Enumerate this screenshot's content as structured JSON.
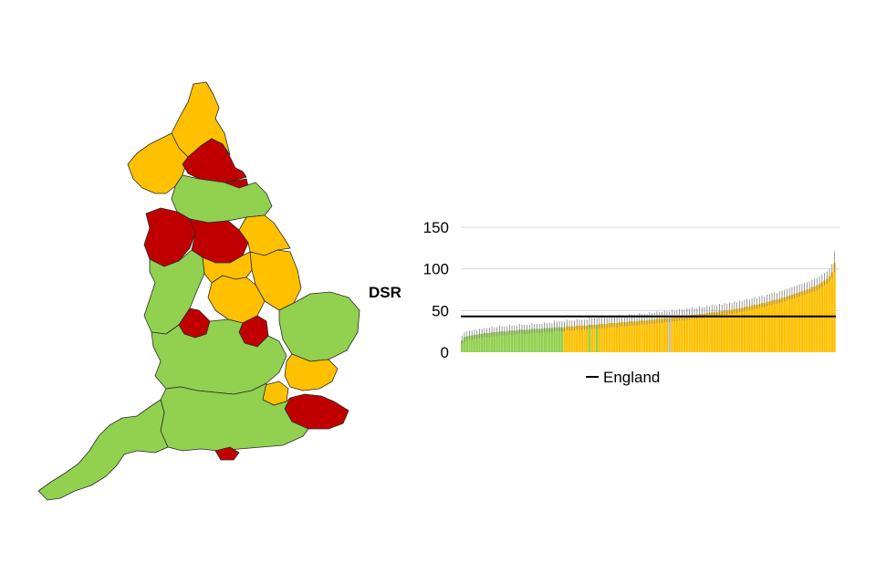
{
  "colors": {
    "better": "#92d050",
    "similar": "#ffc000",
    "worse": "#c00000",
    "not_compared": "#bfbfbf",
    "england_line": "#000000",
    "error_bar": "#808080",
    "gridline": "#d9d9d9"
  },
  "map": {
    "regions": [
      {
        "name": "northumberland",
        "color": "similar"
      },
      {
        "name": "cumbria",
        "color": "similar"
      },
      {
        "name": "tyne-and-wear",
        "color": "worse"
      },
      {
        "name": "county-durham",
        "color": "worse"
      },
      {
        "name": "north-yorkshire",
        "color": "better"
      },
      {
        "name": "lancashire",
        "color": "worse"
      },
      {
        "name": "west-yorkshire",
        "color": "worse"
      },
      {
        "name": "east-riding",
        "color": "similar"
      },
      {
        "name": "lincolnshire",
        "color": "similar"
      },
      {
        "name": "south-yorkshire",
        "color": "similar"
      },
      {
        "name": "cheshire-shropshire",
        "color": "better"
      },
      {
        "name": "derbyshire-notts",
        "color": "similar"
      },
      {
        "name": "west-midlands",
        "color": "worse"
      },
      {
        "name": "leicestershire",
        "color": "worse"
      },
      {
        "name": "east-anglia",
        "color": "better"
      },
      {
        "name": "midlands-south",
        "color": "better"
      },
      {
        "name": "essex",
        "color": "similar"
      },
      {
        "name": "kent",
        "color": "worse"
      },
      {
        "name": "london",
        "color": "similar"
      },
      {
        "name": "south-central",
        "color": "better"
      },
      {
        "name": "south-west",
        "color": "better"
      },
      {
        "name": "isle-of-wight",
        "color": "worse"
      }
    ]
  },
  "chart_data": {
    "type": "bar",
    "title": "",
    "xlabel": "",
    "ylabel": "DSR",
    "ylim": [
      0,
      150
    ],
    "yticks": [
      0,
      50,
      100,
      150
    ],
    "grid": true,
    "legend": {
      "entries": [
        "England"
      ],
      "placement": "bottom"
    },
    "reference_line": {
      "name": "England",
      "value": 43
    },
    "categories_count": 150,
    "values": [
      14,
      18,
      19,
      20,
      20,
      21,
      21,
      22,
      22,
      23,
      23,
      23,
      24,
      24,
      24,
      25,
      25,
      25,
      25,
      26,
      26,
      26,
      26,
      27,
      27,
      27,
      27,
      27,
      28,
      28,
      28,
      28,
      28,
      29,
      29,
      29,
      29,
      30,
      30,
      30,
      30,
      30,
      31,
      31,
      31,
      31,
      32,
      32,
      32,
      32,
      32,
      33,
      33,
      33,
      33,
      34,
      34,
      34,
      34,
      35,
      35,
      35,
      35,
      36,
      36,
      36,
      36,
      37,
      37,
      37,
      37,
      38,
      38,
      38,
      38,
      39,
      39,
      39,
      40,
      40,
      40,
      41,
      41,
      41,
      42,
      42,
      42,
      43,
      43,
      43,
      44,
      44,
      45,
      45,
      45,
      46,
      46,
      46,
      47,
      47,
      48,
      48,
      48,
      49,
      49,
      50,
      50,
      51,
      51,
      52,
      52,
      53,
      53,
      54,
      55,
      55,
      56,
      57,
      57,
      58,
      59,
      59,
      60,
      61,
      62,
      63,
      63,
      64,
      65,
      66,
      67,
      68,
      69,
      70,
      71,
      72,
      73,
      74,
      75,
      76,
      78,
      79,
      80,
      82,
      84,
      86,
      88,
      91,
      96,
      107
    ],
    "error_upper": [
      20,
      24,
      25,
      26,
      26,
      27,
      27,
      28,
      28,
      29,
      29,
      29,
      31,
      30,
      30,
      32,
      31,
      31,
      31,
      33,
      32,
      32,
      32,
      34,
      33,
      33,
      33,
      33,
      35,
      34,
      34,
      34,
      34,
      36,
      35,
      35,
      35,
      38,
      37,
      37,
      37,
      37,
      39,
      38,
      38,
      38,
      40,
      39,
      39,
      39,
      39,
      42,
      41,
      41,
      41,
      43,
      42,
      42,
      42,
      44,
      43,
      43,
      43,
      45,
      44,
      44,
      44,
      46,
      45,
      45,
      45,
      47,
      46,
      46,
      46,
      48,
      47,
      47,
      49,
      48,
      48,
      50,
      49,
      49,
      51,
      50,
      50,
      52,
      51,
      51,
      53,
      52,
      54,
      53,
      53,
      55,
      54,
      54,
      56,
      55,
      57,
      56,
      56,
      58,
      57,
      59,
      58,
      60,
      59,
      61,
      60,
      62,
      61,
      63,
      64,
      63,
      65,
      66,
      65,
      67,
      68,
      67,
      69,
      70,
      71,
      72,
      71,
      73,
      74,
      75,
      76,
      77,
      78,
      79,
      80,
      81,
      82,
      83,
      84,
      85,
      87,
      88,
      89,
      91,
      93,
      95,
      97,
      100,
      106,
      121
    ],
    "error_lower": [
      10,
      13,
      14,
      15,
      15,
      16,
      16,
      17,
      17,
      18,
      18,
      18,
      19,
      19,
      19,
      20,
      20,
      20,
      20,
      21,
      21,
      21,
      21,
      22,
      22,
      22,
      22,
      22,
      23,
      23,
      23,
      23,
      23,
      24,
      24,
      24,
      24,
      25,
      25,
      25,
      25,
      25,
      26,
      26,
      26,
      26,
      27,
      27,
      27,
      27,
      27,
      28,
      28,
      28,
      28,
      29,
      29,
      29,
      29,
      30,
      30,
      30,
      30,
      31,
      31,
      31,
      31,
      32,
      32,
      32,
      32,
      33,
      33,
      33,
      33,
      34,
      34,
      34,
      35,
      35,
      35,
      36,
      36,
      36,
      37,
      37,
      37,
      38,
      38,
      38,
      39,
      39,
      40,
      40,
      40,
      41,
      41,
      41,
      42,
      42,
      43,
      43,
      43,
      44,
      44,
      45,
      45,
      46,
      46,
      47,
      47,
      48,
      48,
      49,
      50,
      50,
      51,
      52,
      52,
      53,
      54,
      54,
      55,
      56,
      57,
      58,
      58,
      59,
      60,
      61,
      62,
      63,
      64,
      65,
      66,
      67,
      68,
      69,
      70,
      71,
      72,
      73,
      74,
      76,
      78,
      80,
      82,
      85,
      89,
      96
    ],
    "value_colors": [
      "better",
      "better",
      "better",
      "better",
      "better",
      "better",
      "better",
      "better",
      "better",
      "better",
      "better",
      "better",
      "better",
      "better",
      "better",
      "better",
      "better",
      "better",
      "better",
      "better",
      "better",
      "better",
      "better",
      "better",
      "better",
      "better",
      "better",
      "better",
      "better",
      "better",
      "better",
      "better",
      "better",
      "better",
      "better",
      "better",
      "better",
      "better",
      "better",
      "better",
      "better",
      "similar",
      "similar",
      "similar",
      "similar",
      "similar",
      "similar",
      "similar",
      "similar",
      "similar",
      "similar",
      "better",
      "similar",
      "similar",
      "better",
      "similar",
      "similar",
      "similar",
      "similar",
      "similar",
      "similar",
      "similar",
      "similar",
      "similar",
      "similar",
      "similar",
      "similar",
      "similar",
      "similar",
      "similar",
      "similar",
      "similar",
      "similar",
      "similar",
      "similar",
      "similar",
      "similar",
      "similar",
      "similar",
      "similar",
      "similar",
      "similar",
      "similar",
      "not_compared",
      "similar",
      "similar",
      "similar",
      "similar",
      "similar",
      "similar",
      "similar",
      "similar",
      "similar",
      "similar",
      "similar",
      "similar",
      "similar",
      "similar",
      "similar",
      "similar",
      "similar",
      "similar",
      "similar",
      "similar",
      "similar",
      "similar",
      "similar",
      "similar",
      "similar",
      "similar",
      "similar",
      "similar",
      "similar",
      "similar",
      "similar",
      "similar",
      "similar",
      "similar",
      "similar",
      "similar",
      "similar",
      "similar",
      "similar",
      "similar",
      "similar",
      "similar",
      "similar",
      "similar",
      "similar",
      "similar",
      "similar",
      "similar",
      "similar",
      "similar",
      "similar",
      "similar",
      "similar",
      "similar",
      "similar",
      "similar",
      "similar",
      "similar",
      "similar",
      "similar",
      "similar",
      "similar",
      "similar",
      "similar",
      "similar",
      "similar",
      "similar",
      "similar"
    ]
  }
}
